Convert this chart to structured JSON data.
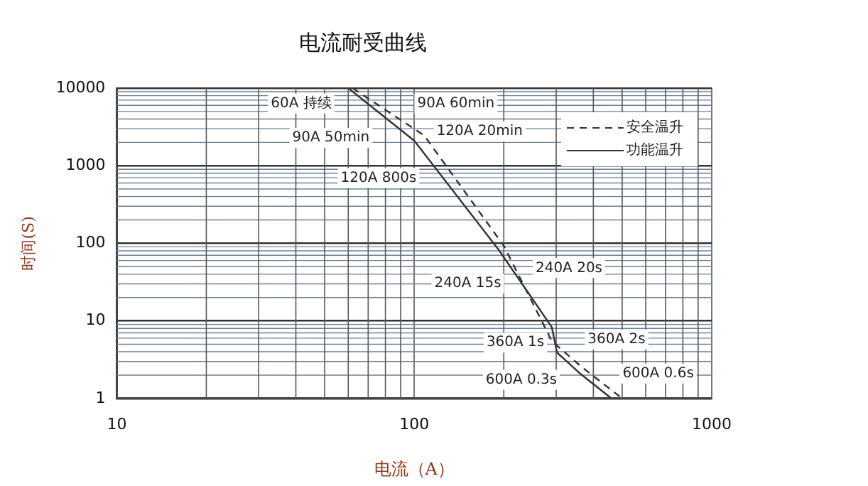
{
  "chart_data": {
    "type": "line",
    "title": "电流耐受曲线",
    "xlabel": "电流（A）",
    "ylabel": "时间(S)",
    "log": "xy",
    "grid": true,
    "legend": "top right",
    "marker": "none",
    "xlim": [
      10,
      1000
    ],
    "xticks": [
      10,
      100,
      1000
    ],
    "ylim": [
      1,
      10000
    ],
    "yticks": [
      1,
      10,
      100,
      1000,
      10000
    ],
    "series": [
      {
        "name": "安全温升",
        "color": "#333333",
        "line_style": "dashed",
        "x": [
          62,
          108,
          200,
          290,
          363,
          500
        ],
        "values": [
          10000,
          2450,
          93,
          5.5,
          2.6,
          1
        ]
      },
      {
        "name": "功能温升",
        "color": "#333333",
        "line_style": "solid",
        "x": [
          60,
          100,
          192,
          290,
          302,
          363,
          460
        ],
        "values": [
          10000,
          2100,
          83,
          8.3,
          3.9,
          2.06,
          1
        ]
      }
    ],
    "annotations": [
      "60A 持续",
      "90A 60min",
      "90A 50min",
      "120A 20min",
      "120A 800s",
      "240A 15s",
      "240A 20s",
      "360A 1s",
      "360A 2s",
      "600A 0.3s",
      "600A 0.6s"
    ]
  }
}
